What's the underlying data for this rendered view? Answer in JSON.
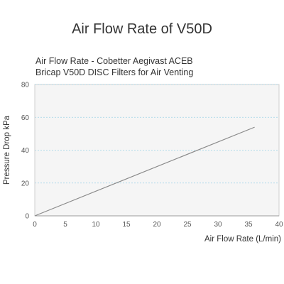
{
  "page": {
    "title": "Air Flow Rate of V50D"
  },
  "chart_data": {
    "type": "line",
    "title_lines": [
      "Air Flow Rate - Cobetter Aegivast ACEB",
      "Bricap V50D DISC Filters for Air Venting"
    ],
    "xlabel": "Air Flow Rate (L/min)",
    "ylabel": "Pressure Drop  kPa",
    "xlim": [
      0,
      40
    ],
    "ylim": [
      0,
      80
    ],
    "x_ticks": [
      0,
      5,
      10,
      15,
      20,
      25,
      30,
      35,
      40
    ],
    "y_ticks": [
      0,
      20,
      40,
      60,
      80
    ],
    "grid": {
      "horizontal": true,
      "style": "dashed",
      "color": "#9fd3e6"
    },
    "plot_background": "#f5f5f5",
    "series": [
      {
        "color": "#8a8a8a",
        "points": [
          [
            0,
            0
          ],
          [
            36,
            54
          ]
        ]
      }
    ]
  }
}
